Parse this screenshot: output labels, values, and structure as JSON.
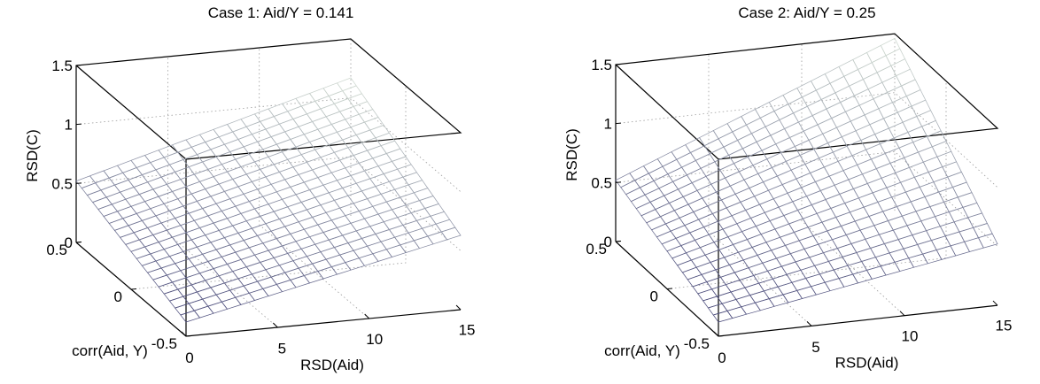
{
  "chart_data": [
    {
      "type": "surface",
      "title": "Case 1: Aid/Y = 0.141",
      "xlabel": "RSD(Aid)",
      "ylabel": "corr(Aid, Y)",
      "zlabel": "RSD(C)",
      "xlim": [
        0,
        15
      ],
      "ylim": [
        -0.5,
        0.5
      ],
      "zlim": [
        0,
        1.5
      ],
      "xticks": [
        "0",
        "5",
        "10",
        "15"
      ],
      "yticks": [
        "-0.5",
        "0",
        "0.5"
      ],
      "zticks": [
        "0",
        "0.5",
        "1",
        "1.5"
      ],
      "grid": true,
      "corner_values": {
        "rsd0_corr_pos": 0.52,
        "rsd0_corr_neg": 0.12,
        "rsd15_corr_pos": 1.17,
        "rsd15_corr_neg": 0.63
      }
    },
    {
      "type": "surface",
      "title": "Case 2: Aid/Y = 0.25",
      "xlabel": "RSD(Aid)",
      "ylabel": "corr(Aid, Y)",
      "zlabel": "RSD(C)",
      "xlim": [
        0,
        15
      ],
      "ylim": [
        -0.5,
        0.5
      ],
      "zlim": [
        0,
        1.5
      ],
      "xticks": [
        "0",
        "5",
        "10",
        "15"
      ],
      "yticks": [
        "-0.5",
        "0",
        "0.5"
      ],
      "zticks": [
        "0",
        "0.5",
        "1",
        "1.5"
      ],
      "grid": true,
      "corner_values": {
        "rsd0_corr_pos": 0.52,
        "rsd0_corr_neg": 0.12,
        "rsd15_corr_pos": 1.46,
        "rsd15_corr_neg": 0.52
      }
    }
  ]
}
